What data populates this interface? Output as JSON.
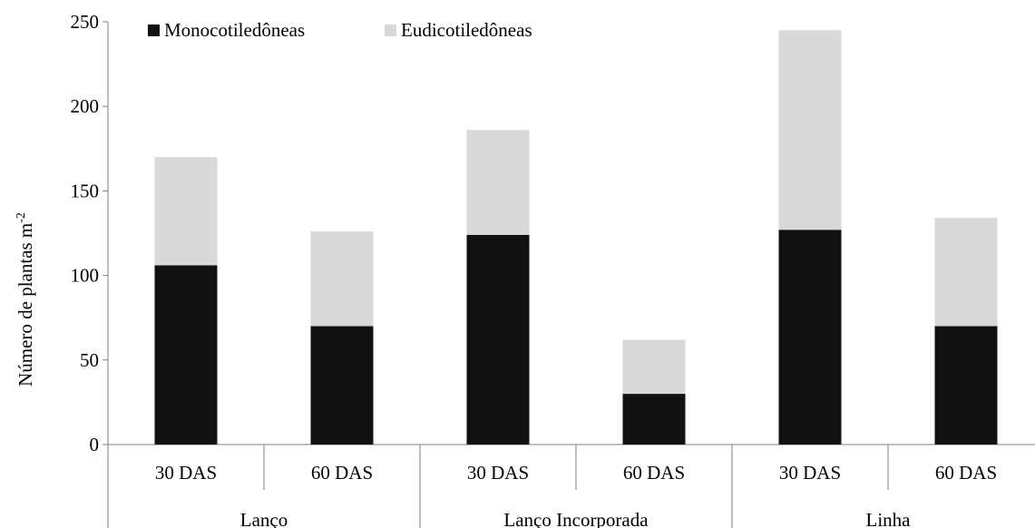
{
  "chart_data": {
    "type": "bar",
    "stacked": true,
    "groups": [
      "Lanço",
      "Lanço Incorporada",
      "Linha"
    ],
    "categories": [
      "30 DAS",
      "60 DAS",
      "30 DAS",
      "60 DAS",
      "30 DAS",
      "60 DAS"
    ],
    "series": [
      {
        "name": "Monocotiledôneas",
        "color": "#111111",
        "values": [
          106,
          70,
          124,
          30,
          127,
          70
        ]
      },
      {
        "name": "Eudicotiledôneas",
        "color": "#d9d9d9",
        "values": [
          64,
          56,
          62,
          32,
          118,
          64
        ]
      }
    ],
    "ylabel_main": "Número de plantas m",
    "ylabel_sup": "-2",
    "ylim": [
      0,
      250
    ],
    "yticks": [
      0,
      50,
      100,
      150,
      200,
      250
    ],
    "grid": false,
    "legend_position": "top-left"
  }
}
